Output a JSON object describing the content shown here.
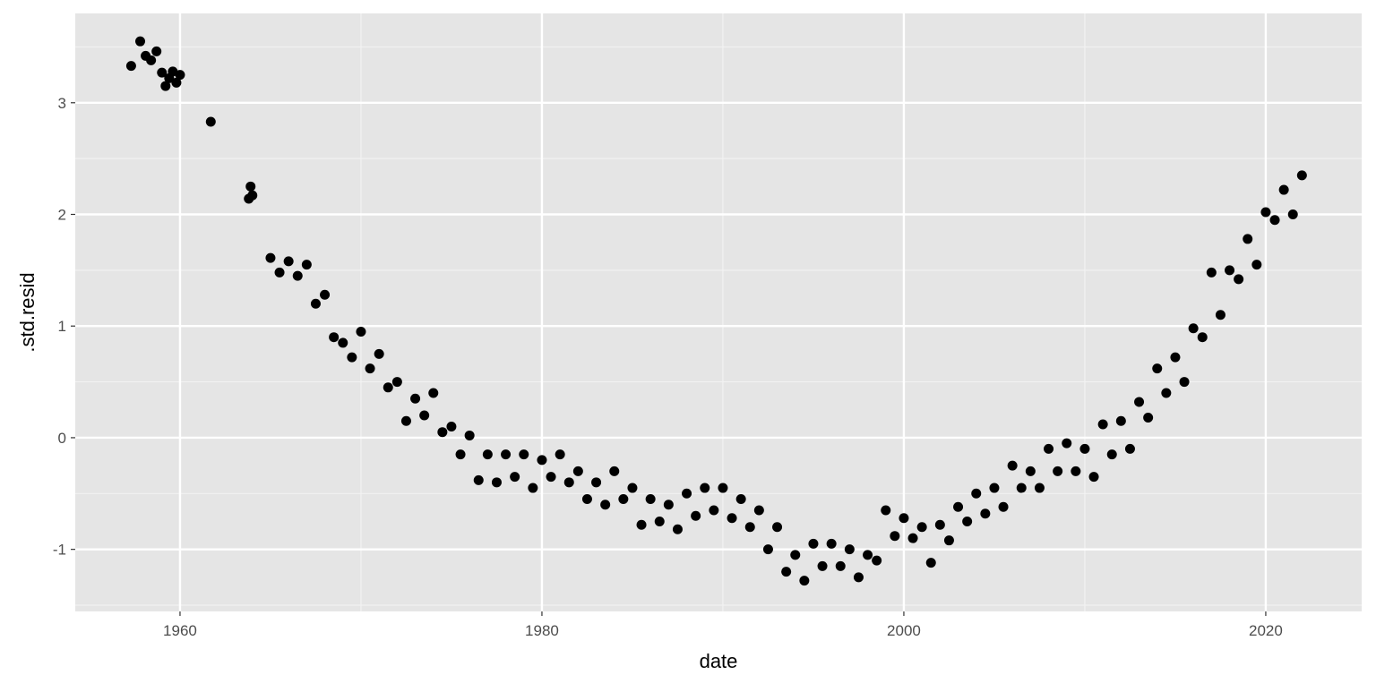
{
  "chart_data": {
    "type": "scatter",
    "xlabel": "date",
    "ylabel": ".std.resid",
    "xlim": [
      1954.21,
      2025.3
    ],
    "ylim": [
      -1.556,
      3.8
    ],
    "xticks": [
      1960,
      1980,
      2000,
      2020
    ],
    "yticks": [
      -1,
      0,
      1,
      2,
      3
    ],
    "xminor": [
      1970,
      1990,
      2010
    ],
    "yminor": [
      -1.5,
      -0.5,
      0.5,
      1.5,
      2.5,
      3.5
    ],
    "grid": true,
    "color": "#000000",
    "series": [
      {
        "name": "points",
        "x": [
          1957.3,
          1957.8,
          1958.1,
          1958.4,
          1958.7,
          1959.0,
          1959.2,
          1959.4,
          1959.6,
          1959.8,
          1960.0,
          1961.7,
          1963.8,
          1963.9,
          1964.0,
          1965.0,
          1965.5,
          1966.0,
          1966.5,
          1967.0,
          1967.5,
          1968.0,
          1968.5,
          1969.0,
          1969.5,
          1970.0,
          1970.5,
          1971.0,
          1971.5,
          1972.0,
          1972.5,
          1973.0,
          1973.5,
          1974.0,
          1974.5,
          1975.0,
          1975.5,
          1976.0,
          1976.5,
          1977.0,
          1977.5,
          1978.0,
          1978.5,
          1979.0,
          1979.5,
          1980.0,
          1980.5,
          1981.0,
          1981.5,
          1982.0,
          1982.5,
          1983.0,
          1983.5,
          1984.0,
          1984.5,
          1985.0,
          1985.5,
          1986.0,
          1986.5,
          1987.0,
          1987.5,
          1988.0,
          1988.5,
          1989.0,
          1989.5,
          1990.0,
          1990.5,
          1991.0,
          1991.5,
          1992.0,
          1992.5,
          1993.0,
          1993.5,
          1994.0,
          1994.5,
          1995.0,
          1995.5,
          1996.0,
          1996.5,
          1997.0,
          1997.5,
          1998.0,
          1998.5,
          1999.0,
          1999.5,
          2000.0,
          2000.5,
          2001.0,
          2001.5,
          2002.0,
          2002.5,
          2003.0,
          2003.5,
          2004.0,
          2004.5,
          2005.0,
          2005.5,
          2006.0,
          2006.5,
          2007.0,
          2007.5,
          2008.0,
          2008.5,
          2009.0,
          2009.5,
          2010.0,
          2010.5,
          2011.0,
          2011.5,
          2012.0,
          2012.5,
          2013.0,
          2013.5,
          2014.0,
          2014.5,
          2015.0,
          2015.5,
          2016.0,
          2016.5,
          2017.0,
          2017.5,
          2018.0,
          2018.5,
          2019.0,
          2019.5,
          2020.0,
          2020.5,
          2021.0,
          2021.5,
          2022.0
        ],
        "values": [
          3.33,
          3.55,
          3.42,
          3.38,
          3.46,
          3.27,
          3.15,
          3.22,
          3.28,
          3.18,
          3.25,
          2.83,
          2.14,
          2.25,
          2.17,
          1.61,
          1.48,
          1.58,
          1.45,
          1.55,
          1.2,
          1.28,
          0.9,
          0.85,
          0.72,
          0.95,
          0.62,
          0.75,
          0.45,
          0.5,
          0.15,
          0.35,
          0.2,
          0.4,
          0.05,
          0.1,
          -0.15,
          0.02,
          -0.38,
          -0.15,
          -0.4,
          -0.15,
          -0.35,
          -0.15,
          -0.45,
          -0.2,
          -0.35,
          -0.15,
          -0.4,
          -0.3,
          -0.55,
          -0.4,
          -0.6,
          -0.3,
          -0.55,
          -0.45,
          -0.78,
          -0.55,
          -0.75,
          -0.6,
          -0.82,
          -0.5,
          -0.7,
          -0.45,
          -0.65,
          -0.45,
          -0.72,
          -0.55,
          -0.8,
          -0.65,
          -1.0,
          -0.8,
          -1.2,
          -1.05,
          -1.28,
          -0.95,
          -1.15,
          -0.95,
          -1.15,
          -1.0,
          -1.25,
          -1.05,
          -1.1,
          -0.65,
          -0.88,
          -0.72,
          -0.9,
          -0.8,
          -1.12,
          -0.78,
          -0.92,
          -0.62,
          -0.75,
          -0.5,
          -0.68,
          -0.45,
          -0.62,
          -0.25,
          -0.45,
          -0.3,
          -0.45,
          -0.1,
          -0.3,
          -0.05,
          -0.3,
          -0.1,
          -0.35,
          0.12,
          -0.15,
          0.15,
          -0.1,
          0.32,
          0.18,
          0.62,
          0.4,
          0.72,
          0.5,
          0.98,
          0.9,
          1.48,
          1.1,
          1.5,
          1.42,
          1.78,
          1.55,
          2.02,
          1.95,
          2.22,
          2.0,
          2.35
        ]
      }
    ]
  }
}
